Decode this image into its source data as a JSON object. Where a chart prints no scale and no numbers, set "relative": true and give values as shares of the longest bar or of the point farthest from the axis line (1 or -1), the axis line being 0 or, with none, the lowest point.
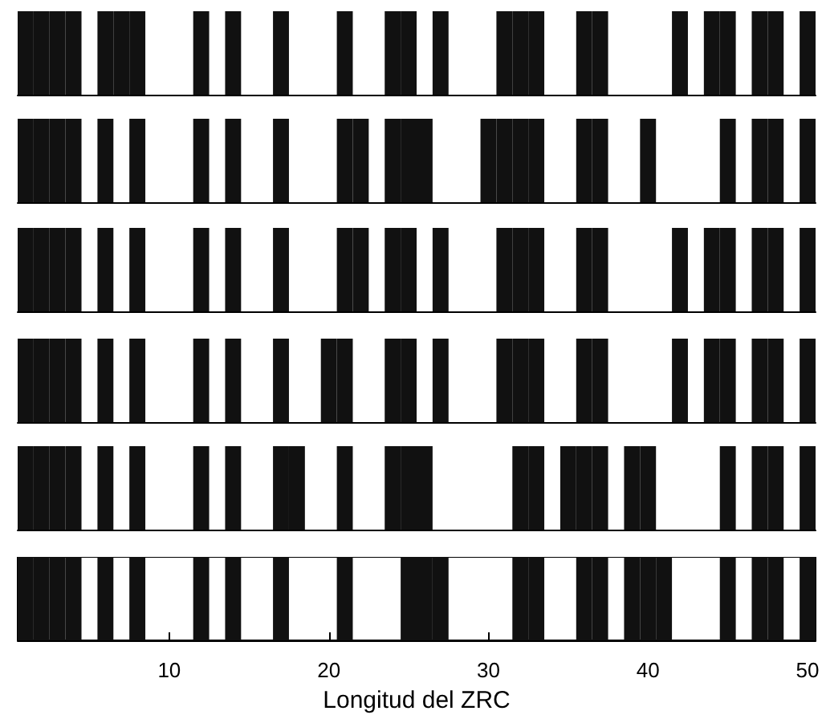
{
  "chart_data": [
    {
      "type": "bar",
      "relative": true,
      "color": "#111111",
      "tick_labels": false,
      "xlim": [
        0.5,
        50.5
      ],
      "x": [
        1,
        2,
        3,
        4,
        5,
        6,
        7,
        8,
        9,
        10,
        11,
        12,
        13,
        14,
        15,
        16,
        17,
        18,
        19,
        20,
        21,
        22,
        23,
        24,
        25,
        26,
        27,
        28,
        29,
        30,
        31,
        32,
        33,
        34,
        35,
        36,
        37,
        38,
        39,
        40,
        41,
        42,
        43,
        44,
        45,
        46,
        47,
        48,
        49,
        50
      ],
      "values": [
        1,
        1,
        1,
        1,
        0,
        1,
        1,
        1,
        0,
        0,
        0,
        1,
        0,
        1,
        0,
        0,
        1,
        0,
        0,
        0,
        1,
        0,
        0,
        1,
        1,
        0,
        1,
        0,
        0,
        0,
        1,
        1,
        1,
        0,
        0,
        1,
        1,
        0,
        0,
        0,
        0,
        1,
        0,
        1,
        1,
        0,
        1,
        1,
        0,
        1
      ]
    },
    {
      "type": "bar",
      "relative": true,
      "color": "#111111",
      "tick_labels": false,
      "xlim": [
        0.5,
        50.5
      ],
      "x": [
        1,
        2,
        3,
        4,
        5,
        6,
        7,
        8,
        9,
        10,
        11,
        12,
        13,
        14,
        15,
        16,
        17,
        18,
        19,
        20,
        21,
        22,
        23,
        24,
        25,
        26,
        27,
        28,
        29,
        30,
        31,
        32,
        33,
        34,
        35,
        36,
        37,
        38,
        39,
        40,
        41,
        42,
        43,
        44,
        45,
        46,
        47,
        48,
        49,
        50
      ],
      "values": [
        1,
        1,
        1,
        1,
        0,
        1,
        0,
        1,
        0,
        0,
        0,
        1,
        0,
        1,
        0,
        0,
        1,
        0,
        0,
        0,
        1,
        1,
        0,
        1,
        1,
        1,
        0,
        0,
        0,
        1,
        1,
        1,
        1,
        0,
        0,
        1,
        1,
        0,
        0,
        1,
        0,
        0,
        0,
        0,
        1,
        0,
        1,
        1,
        0,
        1
      ]
    },
    {
      "type": "bar",
      "relative": true,
      "color": "#111111",
      "tick_labels": false,
      "xlim": [
        0.5,
        50.5
      ],
      "x": [
        1,
        2,
        3,
        4,
        5,
        6,
        7,
        8,
        9,
        10,
        11,
        12,
        13,
        14,
        15,
        16,
        17,
        18,
        19,
        20,
        21,
        22,
        23,
        24,
        25,
        26,
        27,
        28,
        29,
        30,
        31,
        32,
        33,
        34,
        35,
        36,
        37,
        38,
        39,
        40,
        41,
        42,
        43,
        44,
        45,
        46,
        47,
        48,
        49,
        50
      ],
      "values": [
        1,
        1,
        1,
        1,
        0,
        1,
        0,
        1,
        0,
        0,
        0,
        1,
        0,
        1,
        0,
        0,
        1,
        0,
        0,
        0,
        1,
        1,
        0,
        1,
        1,
        0,
        1,
        0,
        0,
        0,
        1,
        1,
        1,
        0,
        0,
        1,
        1,
        0,
        0,
        0,
        0,
        1,
        0,
        1,
        1,
        0,
        1,
        1,
        0,
        1
      ]
    },
    {
      "type": "bar",
      "relative": true,
      "color": "#111111",
      "tick_labels": false,
      "xlim": [
        0.5,
        50.5
      ],
      "x": [
        1,
        2,
        3,
        4,
        5,
        6,
        7,
        8,
        9,
        10,
        11,
        12,
        13,
        14,
        15,
        16,
        17,
        18,
        19,
        20,
        21,
        22,
        23,
        24,
        25,
        26,
        27,
        28,
        29,
        30,
        31,
        32,
        33,
        34,
        35,
        36,
        37,
        38,
        39,
        40,
        41,
        42,
        43,
        44,
        45,
        46,
        47,
        48,
        49,
        50
      ],
      "values": [
        1,
        1,
        1,
        1,
        0,
        1,
        0,
        1,
        0,
        0,
        0,
        1,
        0,
        1,
        0,
        0,
        1,
        0,
        0,
        1,
        1,
        0,
        0,
        1,
        1,
        0,
        1,
        0,
        0,
        0,
        1,
        1,
        1,
        0,
        0,
        1,
        1,
        0,
        0,
        0,
        0,
        1,
        0,
        1,
        1,
        0,
        1,
        1,
        0,
        1
      ]
    },
    {
      "type": "bar",
      "relative": true,
      "color": "#111111",
      "tick_labels": false,
      "xlim": [
        0.5,
        50.5
      ],
      "x": [
        1,
        2,
        3,
        4,
        5,
        6,
        7,
        8,
        9,
        10,
        11,
        12,
        13,
        14,
        15,
        16,
        17,
        18,
        19,
        20,
        21,
        22,
        23,
        24,
        25,
        26,
        27,
        28,
        29,
        30,
        31,
        32,
        33,
        34,
        35,
        36,
        37,
        38,
        39,
        40,
        41,
        42,
        43,
        44,
        45,
        46,
        47,
        48,
        49,
        50
      ],
      "values": [
        1,
        1,
        1,
        1,
        0,
        1,
        0,
        1,
        0,
        0,
        0,
        1,
        0,
        1,
        0,
        0,
        1,
        1,
        0,
        0,
        1,
        0,
        0,
        1,
        1,
        1,
        0,
        0,
        0,
        0,
        0,
        1,
        1,
        0,
        1,
        1,
        1,
        0,
        1,
        1,
        0,
        0,
        0,
        0,
        1,
        0,
        1,
        1,
        0,
        1
      ]
    },
    {
      "type": "bar",
      "relative": true,
      "color": "#111111",
      "tick_labels": "x",
      "xlabel": "Longitud del ZRC",
      "xlim": [
        0.5,
        50.5
      ],
      "xticks": [
        10,
        20,
        30,
        40,
        50
      ],
      "x": [
        1,
        2,
        3,
        4,
        5,
        6,
        7,
        8,
        9,
        10,
        11,
        12,
        13,
        14,
        15,
        16,
        17,
        18,
        19,
        20,
        21,
        22,
        23,
        24,
        25,
        26,
        27,
        28,
        29,
        30,
        31,
        32,
        33,
        34,
        35,
        36,
        37,
        38,
        39,
        40,
        41,
        42,
        43,
        44,
        45,
        46,
        47,
        48,
        49,
        50
      ],
      "values": [
        1,
        1,
        1,
        1,
        0,
        1,
        0,
        1,
        0,
        0,
        0,
        1,
        0,
        1,
        0,
        0,
        1,
        0,
        0,
        0,
        1,
        0,
        0,
        0,
        1,
        1,
        1,
        0,
        0,
        0,
        0,
        1,
        1,
        0,
        0,
        1,
        1,
        0,
        1,
        1,
        1,
        0,
        0,
        0,
        1,
        0,
        1,
        1,
        0,
        1
      ]
    }
  ]
}
